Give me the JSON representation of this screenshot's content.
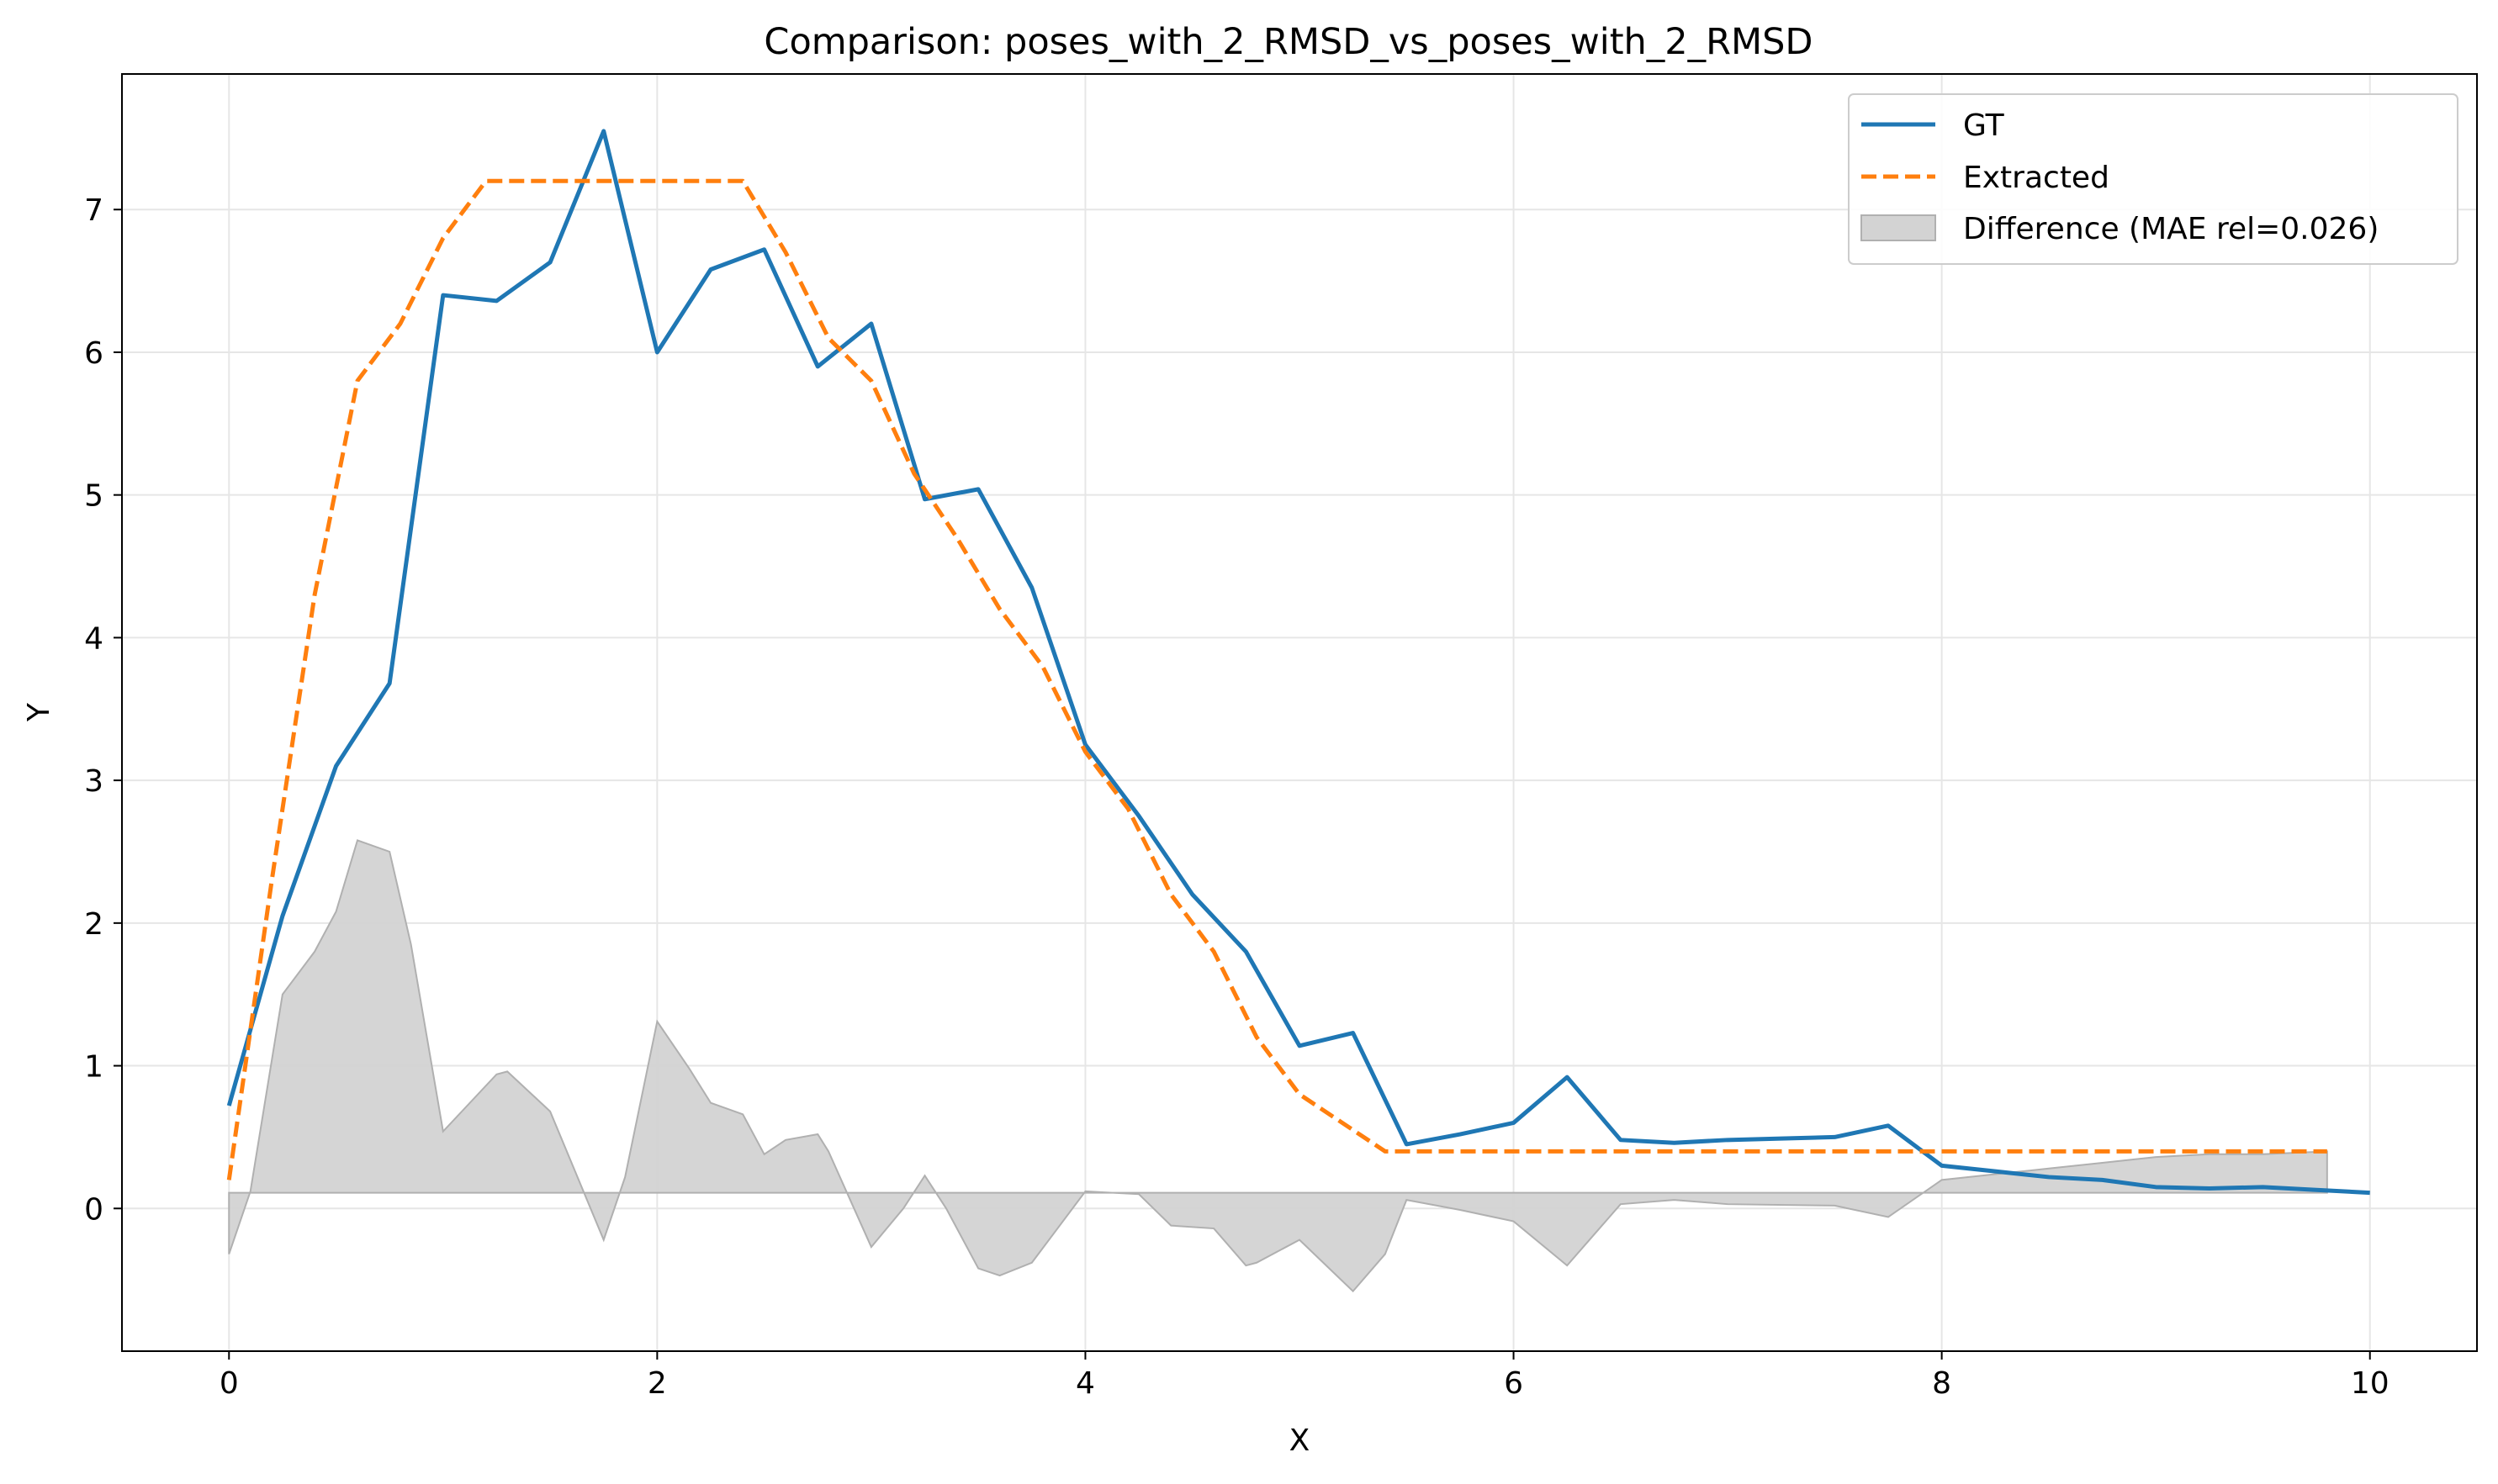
{
  "chart_data": {
    "type": "line",
    "title": "Comparison: poses_with_2_RMSD_vs_poses_with_2_RMSD",
    "xlabel": "X",
    "ylabel": "Y",
    "xlim": [
      -0.5,
      10.5
    ],
    "ylim": [
      -1.0,
      7.95
    ],
    "xticks": [
      0,
      2,
      4,
      6,
      8,
      10
    ],
    "yticks": [
      0,
      1,
      2,
      3,
      4,
      5,
      6,
      7
    ],
    "grid": true,
    "legend_position": "top-right",
    "series": [
      {
        "name": "GT",
        "color": "#1f77b4",
        "style": "solid",
        "x": [
          0,
          0.25,
          0.5,
          0.75,
          1.0,
          1.25,
          1.5,
          1.75,
          2.0,
          2.25,
          2.5,
          2.75,
          3.0,
          3.25,
          3.5,
          3.75,
          4.0,
          4.25,
          4.5,
          4.75,
          5.0,
          5.25,
          5.5,
          5.75,
          6.0,
          6.25,
          6.5,
          6.75,
          7.0,
          7.25,
          7.5,
          7.75,
          8.0,
          8.25,
          8.5,
          8.75,
          9.0,
          9.25,
          9.5,
          9.75,
          10.0
        ],
        "y": [
          0.72,
          2.05,
          3.1,
          3.68,
          6.4,
          6.36,
          6.63,
          7.55,
          6.0,
          6.58,
          6.72,
          5.9,
          6.2,
          4.97,
          5.04,
          4.35,
          3.25,
          2.75,
          2.2,
          1.8,
          1.14,
          1.23,
          0.45,
          0.52,
          0.6,
          0.92,
          0.48,
          0.46,
          0.48,
          0.49,
          0.5,
          0.58,
          0.3,
          0.26,
          0.22,
          0.2,
          0.15,
          0.14,
          0.15,
          0.13,
          0.11
        ]
      },
      {
        "name": "Extracted",
        "color": "#ff7f0e",
        "style": "dashed",
        "x": [
          0,
          0.2,
          0.4,
          0.6,
          0.8,
          1.0,
          1.2,
          1.4,
          1.6,
          1.8,
          2.0,
          2.2,
          2.4,
          2.6,
          2.8,
          3.0,
          3.2,
          3.4,
          3.6,
          3.8,
          4.0,
          4.2,
          4.4,
          4.6,
          4.8,
          5.0,
          5.2,
          5.4,
          5.6,
          5.8,
          6.0,
          6.5,
          7.0,
          7.5,
          8.0,
          8.5,
          9.0,
          9.5,
          9.8
        ],
        "y": [
          0.2,
          2.3,
          4.3,
          5.8,
          6.2,
          6.8,
          7.2,
          7.2,
          7.2,
          7.2,
          7.2,
          7.2,
          7.2,
          6.7,
          6.1,
          5.8,
          5.15,
          4.7,
          4.2,
          3.8,
          3.2,
          2.8,
          2.2,
          1.8,
          1.2,
          0.8,
          0.6,
          0.4,
          0.4,
          0.4,
          0.4,
          0.4,
          0.4,
          0.4,
          0.4,
          0.4,
          0.4,
          0.4,
          0.4
        ]
      }
    ],
    "difference": {
      "name": "Difference (MAE rel=0.026)",
      "color": "#d3d3d3",
      "edge_color": "#b0b0b0",
      "baseline": 0.11,
      "x": [
        0,
        0.1,
        0.25,
        0.4,
        0.5,
        0.6,
        0.75,
        0.85,
        1.0,
        1.25,
        1.3,
        1.5,
        1.75,
        1.85,
        2.0,
        2.15,
        2.25,
        2.4,
        2.5,
        2.6,
        2.75,
        2.8,
        3.0,
        3.15,
        3.25,
        3.35,
        3.5,
        3.6,
        3.75,
        4.0,
        4.25,
        4.4,
        4.6,
        4.75,
        4.8,
        5.0,
        5.25,
        5.4,
        5.5,
        5.75,
        6.0,
        6.25,
        6.5,
        6.75,
        7.0,
        7.5,
        7.75,
        8.0,
        8.25,
        8.5,
        8.75,
        9.0,
        9.25,
        9.5,
        9.8
      ],
      "y": [
        -0.32,
        0.12,
        1.5,
        1.8,
        2.08,
        2.58,
        2.5,
        1.85,
        0.54,
        0.94,
        0.96,
        0.68,
        -0.22,
        0.22,
        1.31,
        0.98,
        0.74,
        0.66,
        0.38,
        0.48,
        0.52,
        0.4,
        -0.27,
        0.0,
        0.23,
        0.0,
        -0.42,
        -0.47,
        -0.38,
        0.12,
        0.1,
        -0.12,
        -0.14,
        -0.4,
        -0.38,
        -0.22,
        -0.58,
        -0.32,
        0.06,
        -0.01,
        -0.09,
        -0.4,
        0.03,
        0.06,
        0.03,
        0.02,
        -0.06,
        0.2,
        0.24,
        0.28,
        0.32,
        0.36,
        0.38,
        0.38,
        0.4
      ]
    }
  }
}
